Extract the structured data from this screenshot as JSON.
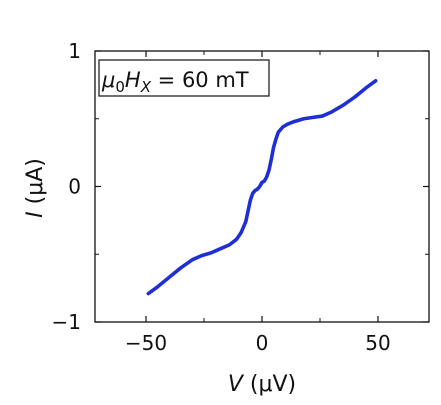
{
  "chart_data": {
    "type": "line",
    "xlabel_symbol": "V",
    "xlabel_unit": "(μV)",
    "ylabel_symbol": "I",
    "ylabel_unit": "(μA)",
    "xlim": [
      -72,
      72
    ],
    "ylim": [
      -1,
      1
    ],
    "xticks": [
      -50,
      0,
      50
    ],
    "xtick_labels": [
      "−50",
      "0",
      "50"
    ],
    "yticks": [
      -1,
      0,
      1
    ],
    "ytick_labels": [
      "−1",
      "0",
      "1"
    ],
    "grid": false,
    "annotation": {
      "mu": "μ",
      "mu_sub": "0",
      "H": "H",
      "H_sub": "X",
      "value": " = 60 mT"
    },
    "series": [
      {
        "color": "#1f2fd6",
        "x": [
          -49,
          -45,
          -40,
          -35,
          -30,
          -26,
          -22,
          -18,
          -14,
          -11,
          -9,
          -7,
          -6,
          -5,
          -4,
          -3,
          -2,
          -1,
          0,
          1,
          2,
          3,
          4,
          5,
          6,
          7,
          9,
          11,
          14,
          18,
          22,
          26,
          30,
          35,
          40,
          45,
          49
        ],
        "y": [
          -0.79,
          -0.74,
          -0.67,
          -0.6,
          -0.54,
          -0.51,
          -0.49,
          -0.46,
          -0.43,
          -0.39,
          -0.34,
          -0.26,
          -0.18,
          -0.1,
          -0.05,
          -0.03,
          -0.02,
          0.0,
          0.03,
          0.04,
          0.07,
          0.12,
          0.2,
          0.29,
          0.35,
          0.4,
          0.44,
          0.46,
          0.48,
          0.5,
          0.51,
          0.52,
          0.55,
          0.6,
          0.66,
          0.73,
          0.78
        ]
      }
    ]
  }
}
